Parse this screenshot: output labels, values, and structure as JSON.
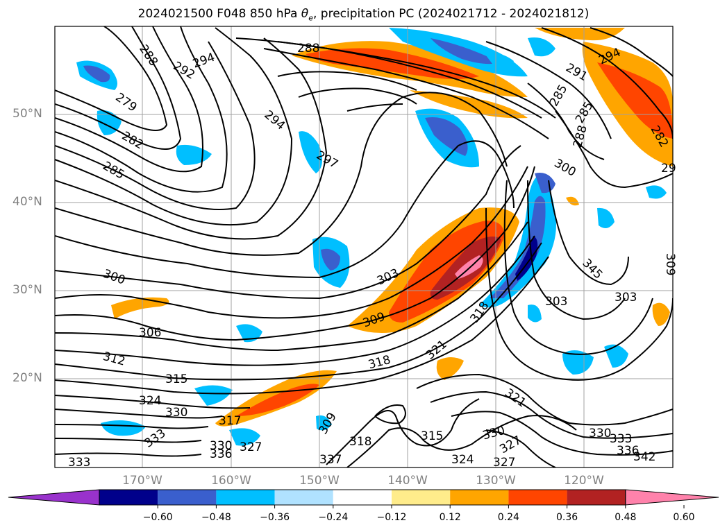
{
  "title": "2024021500 F048 850 hPa θe, precipitation PC (2024021712 - 2024021812)",
  "title_parts": {
    "prefix": "2024021500 F048 850 hPa ",
    "theta": "θ",
    "sub": "e",
    "suffix": ", precipitation PC (2024021712 - 2024021812)"
  },
  "lat_labels": [
    "50°N",
    "40°N",
    "30°N",
    "20°N"
  ],
  "lon_labels": [
    "170°W",
    "160°W",
    "150°W",
    "140°W",
    "130°W",
    "120°W"
  ],
  "colorbar": {
    "ticks": [
      "−0.60",
      "−0.48",
      "−0.36",
      "−0.24",
      "−0.12",
      "0.12",
      "0.24",
      "0.36",
      "0.48",
      "0.60"
    ],
    "colors": [
      "#9932cc",
      "#00008b",
      "#3a5fcd",
      "#00bfff",
      "#b0e2ff",
      "#ffffff",
      "#ffec8b",
      "#ffa500",
      "#ff4500",
      "#b22222",
      "#ff82ab"
    ]
  },
  "contour_labels": [
    "288",
    "292",
    "294",
    "279",
    "282",
    "285",
    "294",
    "297",
    "288",
    "291",
    "294",
    "285",
    "285",
    "288",
    "282",
    "29",
    "300",
    "300",
    "303",
    "309",
    "306",
    "312",
    "315",
    "324",
    "330",
    "333",
    "317",
    "327",
    "330",
    "336",
    "337",
    "333",
    "318",
    "321",
    "318",
    "321",
    "327",
    "315",
    "318",
    "324",
    "330",
    "327",
    "330",
    "333",
    "336",
    "342",
    "345",
    "303",
    "303",
    "309",
    "309"
  ]
}
